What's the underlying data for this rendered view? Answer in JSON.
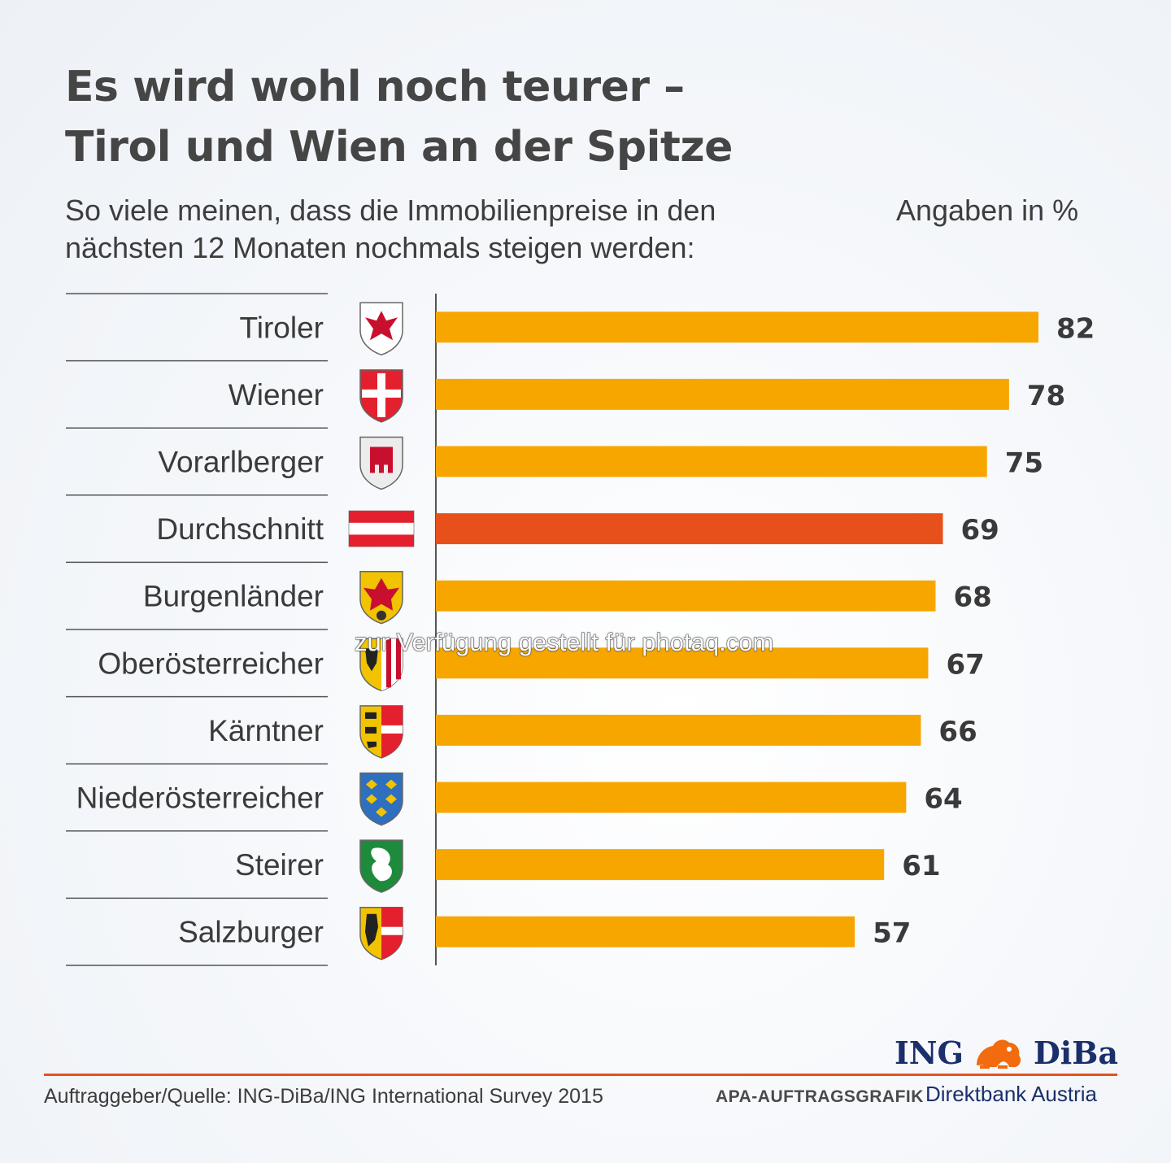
{
  "title_lines": [
    "Es wird wohl noch teurer –",
    "Tirol und Wien an der Spitze"
  ],
  "subtitle_lines": [
    "So viele meinen, dass die Immobilienpreise in den",
    "nächsten 12 Monaten nochmals steigen werden:"
  ],
  "unit_label": "Angaben in %",
  "chart_data": {
    "type": "bar",
    "orientation": "horizontal",
    "title": "Es wird wohl noch teurer – Tirol und Wien an der Spitze",
    "subtitle": "So viele meinen, dass die Immobilienpreise in den nächsten 12 Monaten nochmals steigen werden:",
    "xlabel": "",
    "ylabel": "",
    "unit": "Angaben in %",
    "xlim": [
      0,
      82
    ],
    "grid": false,
    "categories": [
      "Tiroler",
      "Wiener",
      "Vorarlberger",
      "Durchschnitt",
      "Burgenländer",
      "Oberösterreicher",
      "Kärntner",
      "Niederösterreicher",
      "Steirer",
      "Salzburger"
    ],
    "values": [
      82,
      78,
      75,
      69,
      68,
      67,
      66,
      64,
      61,
      57
    ],
    "icons": [
      "tirol-coat-of-arms-icon",
      "wien-coat-of-arms-icon",
      "vorarlberg-coat-of-arms-icon",
      "austria-flag-icon",
      "burgenland-coat-of-arms-icon",
      "oberoesterreich-coat-of-arms-icon",
      "kaernten-coat-of-arms-icon",
      "niederoesterreich-coat-of-arms-icon",
      "steiermark-coat-of-arms-icon",
      "salzburg-coat-of-arms-icon"
    ],
    "highlight_category": "Durchschnitt",
    "colors": {
      "bar": "#f7a600",
      "highlight": "#e8501b"
    }
  },
  "footer": {
    "source": "Auftraggeber/Quelle: ING-DiBa/ING International Survey 2015",
    "credit": "APA-AUFTRAGSGRAFIK",
    "logo_left": "ING",
    "logo_right": "DiBa",
    "logo_icon": "lion-icon",
    "tagline": "Direktbank Austria"
  },
  "watermark": "zur Verfügung gestellt für photaq.com"
}
